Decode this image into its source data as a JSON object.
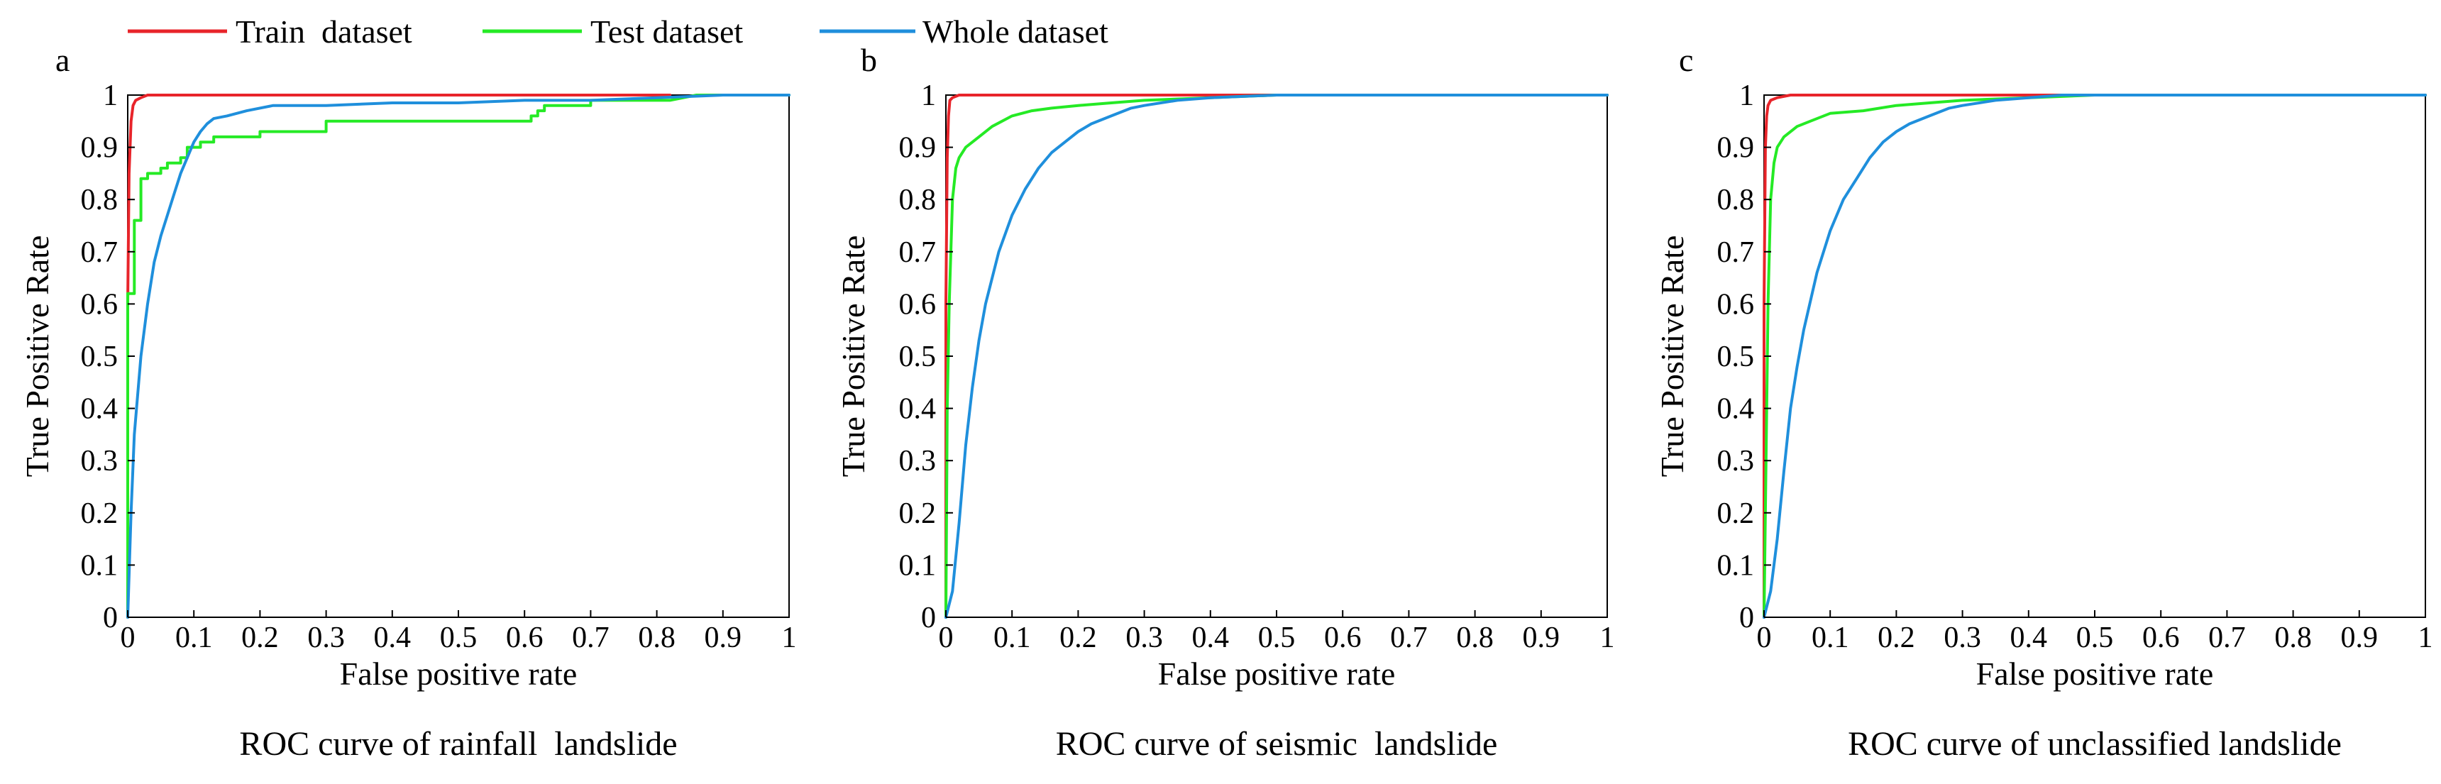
{
  "legend": {
    "items": [
      {
        "label": "Train  dataset",
        "color": "#e8242a"
      },
      {
        "label": "Test dataset",
        "color": "#25ea25"
      },
      {
        "label": "Whole dataset",
        "color": "#1f8fdc"
      }
    ]
  },
  "chart_data": [
    {
      "type": "line",
      "panel_label": "a",
      "title": "ROC curve of rainfall  landslide",
      "xlabel": "False positive rate",
      "ylabel": "True Positive Rate",
      "xlim": [
        0,
        1
      ],
      "ylim": [
        0,
        1
      ],
      "xticks": [
        "0",
        "0.1",
        "0.2",
        "0.3",
        "0.4",
        "0.5",
        "0.6",
        "0.7",
        "0.8",
        "0.9",
        "1"
      ],
      "yticks": [
        "0",
        "0.1",
        "0.2",
        "0.3",
        "0.4",
        "0.5",
        "0.6",
        "0.7",
        "0.8",
        "0.9",
        "1"
      ],
      "grid": false,
      "series": [
        {
          "name": "Train dataset",
          "color": "#e8242a",
          "x": [
            0,
            0,
            0.002,
            0.005,
            0.008,
            0.012,
            0.02,
            0.03,
            0.05,
            0.1,
            0.3,
            0.5,
            0.8,
            0.82
          ],
          "y": [
            0,
            0.6,
            0.85,
            0.95,
            0.98,
            0.99,
            0.995,
            1.0,
            1.0,
            1.0,
            1.0,
            1.0,
            1.0,
            1.0
          ]
        },
        {
          "name": "Test dataset",
          "color": "#25ea25",
          "x": [
            0,
            0,
            0.01,
            0.01,
            0.02,
            0.02,
            0.03,
            0.03,
            0.05,
            0.05,
            0.06,
            0.06,
            0.08,
            0.08,
            0.09,
            0.09,
            0.11,
            0.11,
            0.13,
            0.13,
            0.15,
            0.15,
            0.2,
            0.2,
            0.3,
            0.3,
            0.61,
            0.61,
            0.62,
            0.62,
            0.63,
            0.63,
            0.66,
            0.66,
            0.7,
            0.7,
            0.82,
            0.82,
            0.86,
            1.0
          ],
          "y": [
            0,
            0.62,
            0.62,
            0.76,
            0.76,
            0.84,
            0.84,
            0.85,
            0.85,
            0.86,
            0.86,
            0.87,
            0.87,
            0.88,
            0.88,
            0.9,
            0.9,
            0.91,
            0.91,
            0.92,
            0.92,
            0.92,
            0.92,
            0.93,
            0.93,
            0.95,
            0.95,
            0.96,
            0.96,
            0.97,
            0.97,
            0.98,
            0.98,
            0.98,
            0.98,
            0.99,
            0.99,
            0.99,
            1.0,
            1.0
          ]
        },
        {
          "name": "Whole dataset",
          "color": "#1f8fdc",
          "x": [
            0,
            0.005,
            0.01,
            0.02,
            0.03,
            0.04,
            0.05,
            0.06,
            0.07,
            0.08,
            0.09,
            0.1,
            0.11,
            0.12,
            0.13,
            0.15,
            0.18,
            0.22,
            0.3,
            0.4,
            0.5,
            0.6,
            0.7,
            0.8,
            0.9,
            1.0
          ],
          "y": [
            0,
            0.2,
            0.35,
            0.5,
            0.6,
            0.68,
            0.73,
            0.77,
            0.81,
            0.85,
            0.88,
            0.91,
            0.93,
            0.945,
            0.955,
            0.96,
            0.97,
            0.98,
            0.98,
            0.985,
            0.985,
            0.99,
            0.99,
            0.995,
            1.0,
            1.0
          ]
        }
      ]
    },
    {
      "type": "line",
      "panel_label": "b",
      "title": "ROC curve of seismic  landslide",
      "xlabel": "False positive rate",
      "ylabel": "True Positive Rate",
      "xlim": [
        0,
        1
      ],
      "ylim": [
        0,
        1
      ],
      "xticks": [
        "0",
        "0.1",
        "0.2",
        "0.3",
        "0.4",
        "0.5",
        "0.6",
        "0.7",
        "0.8",
        "0.9",
        "1"
      ],
      "yticks": [
        "0",
        "0.1",
        "0.2",
        "0.3",
        "0.4",
        "0.5",
        "0.6",
        "0.7",
        "0.8",
        "0.9",
        "1"
      ],
      "grid": false,
      "series": [
        {
          "name": "Train dataset",
          "color": "#e8242a",
          "x": [
            0,
            0,
            0.002,
            0.004,
            0.006,
            0.01,
            0.02,
            0.05,
            0.1,
            0.3,
            0.6,
            1.0
          ],
          "y": [
            0,
            0.6,
            0.88,
            0.96,
            0.99,
            0.995,
            1.0,
            1.0,
            1.0,
            1.0,
            1.0,
            1.0
          ]
        },
        {
          "name": "Test dataset",
          "color": "#25ea25",
          "x": [
            0,
            0.002,
            0.005,
            0.01,
            0.015,
            0.02,
            0.03,
            0.05,
            0.07,
            0.1,
            0.13,
            0.16,
            0.2,
            0.25,
            0.3,
            0.4,
            0.5,
            0.6,
            1.0
          ],
          "y": [
            0,
            0.4,
            0.6,
            0.8,
            0.86,
            0.88,
            0.9,
            0.92,
            0.94,
            0.96,
            0.97,
            0.975,
            0.98,
            0.985,
            0.99,
            0.995,
            1.0,
            1.0,
            1.0
          ]
        },
        {
          "name": "Whole dataset",
          "color": "#1f8fdc",
          "x": [
            0,
            0.01,
            0.02,
            0.03,
            0.04,
            0.05,
            0.06,
            0.08,
            0.1,
            0.12,
            0.14,
            0.16,
            0.18,
            0.2,
            0.22,
            0.25,
            0.28,
            0.3,
            0.35,
            0.4,
            0.5,
            0.6,
            0.7,
            1.0
          ],
          "y": [
            0,
            0.05,
            0.18,
            0.33,
            0.44,
            0.53,
            0.6,
            0.7,
            0.77,
            0.82,
            0.86,
            0.89,
            0.91,
            0.93,
            0.945,
            0.96,
            0.975,
            0.98,
            0.99,
            0.995,
            1.0,
            1.0,
            1.0,
            1.0
          ]
        }
      ]
    },
    {
      "type": "line",
      "panel_label": "c",
      "title": "ROC curve of unclassified landslide",
      "xlabel": "False positive rate",
      "ylabel": "True Positive Rate",
      "xlim": [
        0,
        1
      ],
      "ylim": [
        0,
        1
      ],
      "xticks": [
        "0",
        "0.1",
        "0.2",
        "0.3",
        "0.4",
        "0.5",
        "0.6",
        "0.7",
        "0.8",
        "0.9",
        "1"
      ],
      "yticks": [
        "0",
        "0.1",
        "0.2",
        "0.3",
        "0.4",
        "0.5",
        "0.6",
        "0.7",
        "0.8",
        "0.9",
        "1"
      ],
      "grid": false,
      "series": [
        {
          "name": "Train dataset",
          "color": "#e8242a",
          "x": [
            0,
            0,
            0.002,
            0.004,
            0.006,
            0.01,
            0.02,
            0.04,
            0.1,
            0.3,
            0.6,
            1.0
          ],
          "y": [
            0,
            0.6,
            0.9,
            0.96,
            0.98,
            0.99,
            0.995,
            1.0,
            1.0,
            1.0,
            1.0,
            1.0
          ]
        },
        {
          "name": "Test dataset",
          "color": "#25ea25",
          "x": [
            0,
            0.003,
            0.006,
            0.01,
            0.015,
            0.02,
            0.03,
            0.05,
            0.07,
            0.1,
            0.15,
            0.2,
            0.25,
            0.3,
            0.4,
            0.5,
            0.6,
            1.0
          ],
          "y": [
            0,
            0.3,
            0.6,
            0.8,
            0.87,
            0.9,
            0.92,
            0.94,
            0.95,
            0.965,
            0.97,
            0.98,
            0.985,
            0.99,
            0.995,
            1.0,
            1.0,
            1.0
          ]
        },
        {
          "name": "Whole dataset",
          "color": "#1f8fdc",
          "x": [
            0,
            0.01,
            0.02,
            0.03,
            0.04,
            0.05,
            0.06,
            0.08,
            0.1,
            0.12,
            0.14,
            0.16,
            0.18,
            0.2,
            0.22,
            0.25,
            0.28,
            0.3,
            0.35,
            0.4,
            0.45,
            0.5,
            0.6,
            0.7,
            1.0
          ],
          "y": [
            0,
            0.05,
            0.15,
            0.28,
            0.4,
            0.48,
            0.55,
            0.66,
            0.74,
            0.8,
            0.84,
            0.88,
            0.91,
            0.93,
            0.945,
            0.96,
            0.975,
            0.98,
            0.99,
            0.995,
            1.0,
            1.0,
            1.0,
            1.0,
            1.0
          ]
        }
      ]
    }
  ]
}
